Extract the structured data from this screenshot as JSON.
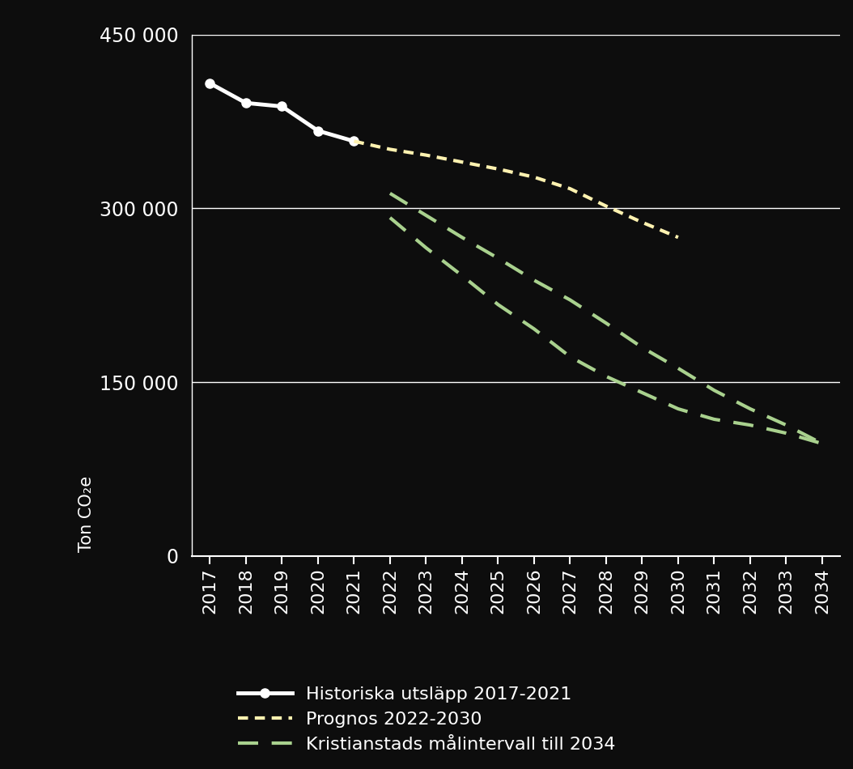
{
  "chart_data": {
    "type": "line",
    "y_label": "Ton CO₂e",
    "categories": [
      "2017",
      "2018",
      "2019",
      "2020",
      "2021",
      "2022",
      "2023",
      "2024",
      "2025",
      "2026",
      "2027",
      "2028",
      "2029",
      "2030",
      "2031",
      "2032",
      "2033",
      "2034"
    ],
    "series": [
      {
        "name": "Historiska utsläpp 2017-2021",
        "color": "#ffffff",
        "line_style": "solid",
        "marker": "o",
        "values": [
          408000,
          391000,
          388000,
          367000,
          358000,
          null,
          null,
          null,
          null,
          null,
          null,
          null,
          null,
          null,
          null,
          null,
          null,
          null
        ]
      },
      {
        "name": "Prognos 2022-2030",
        "color": "#fff2b0",
        "line_style": "dotted",
        "marker": "none",
        "values": [
          null,
          null,
          null,
          null,
          358000,
          351000,
          346000,
          340000,
          334000,
          327000,
          317000,
          302000,
          288000,
          275000,
          null,
          null,
          null,
          null
        ]
      },
      {
        "name": "Kristianstads målintervall till 2034",
        "color": "#a9d18e",
        "line_style": "dashed",
        "marker": "none",
        "values": [
          null,
          null,
          null,
          null,
          null,
          313000,
          294000,
          275000,
          257000,
          238000,
          221000,
          201000,
          180000,
          162000,
          143000,
          127000,
          113000,
          97000
        ],
        "low": [
          null,
          null,
          null,
          null,
          null,
          292000,
          266000,
          242000,
          217000,
          196000,
          172000,
          155000,
          141000,
          127000,
          118000,
          113000,
          106000,
          97000
        ]
      }
    ],
    "ylim": [
      0,
      450000
    ],
    "yticks": [
      {
        "value": 0,
        "label": "0"
      },
      {
        "value": 150000,
        "label": "150 000"
      },
      {
        "value": 300000,
        "label": "300 000"
      },
      {
        "value": 450000,
        "label": "450 000"
      }
    ],
    "grid": true,
    "legend": "lower left"
  }
}
